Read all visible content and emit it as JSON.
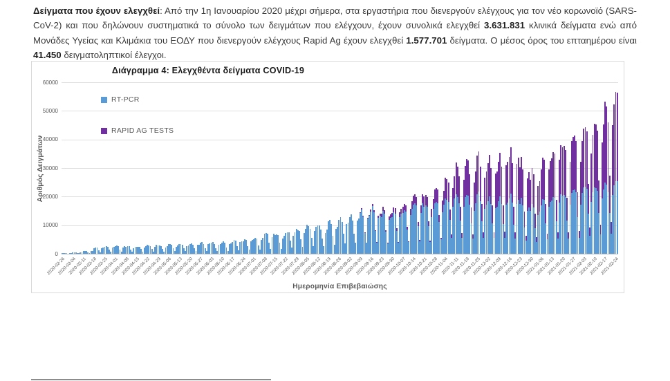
{
  "paragraph": {
    "segments": [
      {
        "text": "Δείγματα που έχουν ελεγχθεί",
        "bold": true
      },
      {
        "text": ": Από την 1η Ιανουαρίου 2020 μέχρι σήμερα, στα εργαστήρια που διενεργούν ελέγχους για τον νέο κορωνοϊό (SARS-CoV-2) και που δηλώνουν συστηματικά το σύνολο των δειγμάτων που ελέγχουν, έχουν συνολικά ελεγχθεί ",
        "bold": false
      },
      {
        "text": "3.631.831",
        "bold": true
      },
      {
        "text": " κλινικά δείγματα ενώ από Μονάδες Υγείας και Κλιμάκια του ΕΟΔΥ που διενεργούν ελέγχους Rapid Ag έχουν ελεγχθεί ",
        "bold": false
      },
      {
        "text": "1.577.701",
        "bold": true
      },
      {
        "text": " δείγματα. Ο μέσος όρος του επταημέρου είναι ",
        "bold": false
      },
      {
        "text": "41.450",
        "bold": true
      },
      {
        "text": " δειγματοληπτικοί έλεγχοι.",
        "bold": false
      }
    ]
  },
  "chart_data": {
    "type": "bar",
    "stacked": true,
    "bar_grain": "daily",
    "title": "Διάγραμμα 4: Ελεγχθέντα δείγματα COVID-19",
    "xlabel": "Ημερομηνία Επιβεβαιώσης",
    "ylabel": "Αριθμός Δειγμάτων",
    "ylim": [
      0,
      60000
    ],
    "yticks": [
      0,
      10000,
      20000,
      30000,
      40000,
      50000,
      60000
    ],
    "grid": "horizontal",
    "legend_position": "upper-left-inside",
    "categories": [
      "2020-02-26",
      "2020-03-04",
      "2020-03-11",
      "2020-03-18",
      "2020-03-25",
      "2020-04-01",
      "2020-04-08",
      "2020-04-15",
      "2020-04-22",
      "2020-04-29",
      "2020-05-06",
      "2020-05-13",
      "2020-05-20",
      "2020-05-27",
      "2020-06-03",
      "2020-06-10",
      "2020-06-17",
      "2020-06-24",
      "2020-07-01",
      "2020-07-08",
      "2020-07-15",
      "2020-07-22",
      "2020-07-29",
      "2020-08-05",
      "2020-08-12",
      "2020-08-19",
      "2020-08-26",
      "2020-09-02",
      "2020-09-09",
      "2020-09-16",
      "2020-09-23",
      "2020-09-30",
      "2020-10-07",
      "2020-10-14",
      "2020-10-21",
      "2020-10-28",
      "2020-11-04",
      "2020-11-11",
      "2020-11-18",
      "2020-11-25",
      "2020-12-02",
      "2020-12-09",
      "2020-12-16",
      "2020-12-23",
      "2020-12-30",
      "2021-01-06",
      "2021-01-13",
      "2021-01-20",
      "2021-01-27",
      "2021-02-03",
      "2021-02-10",
      "2021-02-17",
      "2021-02-24"
    ],
    "days_rendered": 366,
    "series": [
      {
        "name": "RT-PCR",
        "color": "#5B9BD5",
        "weekly_values": [
          300,
          500,
          900,
          2000,
          2300,
          2500,
          2300,
          2400,
          2800,
          2600,
          3000,
          3000,
          3200,
          3500,
          3400,
          3600,
          4200,
          4500,
          5000,
          6500,
          6000,
          7000,
          8000,
          9000,
          8500,
          10000,
          11000,
          12000,
          13000,
          13500,
          12500,
          13000,
          14000,
          16000,
          15000,
          16500,
          18000,
          18500,
          17500,
          18000,
          17000,
          17500,
          18000,
          16000,
          14500,
          17000,
          18500,
          19000,
          20000,
          21000,
          21500,
          22500,
          24000
        ]
      },
      {
        "name": "RAPID AG TESTS",
        "color": "#7030A0",
        "weekly_values": [
          0,
          0,
          0,
          0,
          0,
          0,
          0,
          0,
          0,
          0,
          0,
          0,
          0,
          0,
          0,
          0,
          0,
          0,
          0,
          0,
          0,
          0,
          0,
          0,
          0,
          0,
          0,
          0,
          300,
          700,
          1200,
          1600,
          2200,
          2800,
          3200,
          4500,
          7000,
          10000,
          11000,
          12000,
          12500,
          13500,
          14000,
          12000,
          10500,
          13000,
          15000,
          16000,
          17000,
          19000,
          21000,
          26000,
          30000
        ]
      }
    ],
    "weekday_pattern": [
      1.08,
      1.14,
      1.04,
      0.62,
      0.3,
      0.92,
      1.04
    ],
    "weekday_pattern_rapid": [
      1.06,
      1.12,
      1.02,
      0.5,
      0.15,
      0.95,
      1.06
    ]
  }
}
